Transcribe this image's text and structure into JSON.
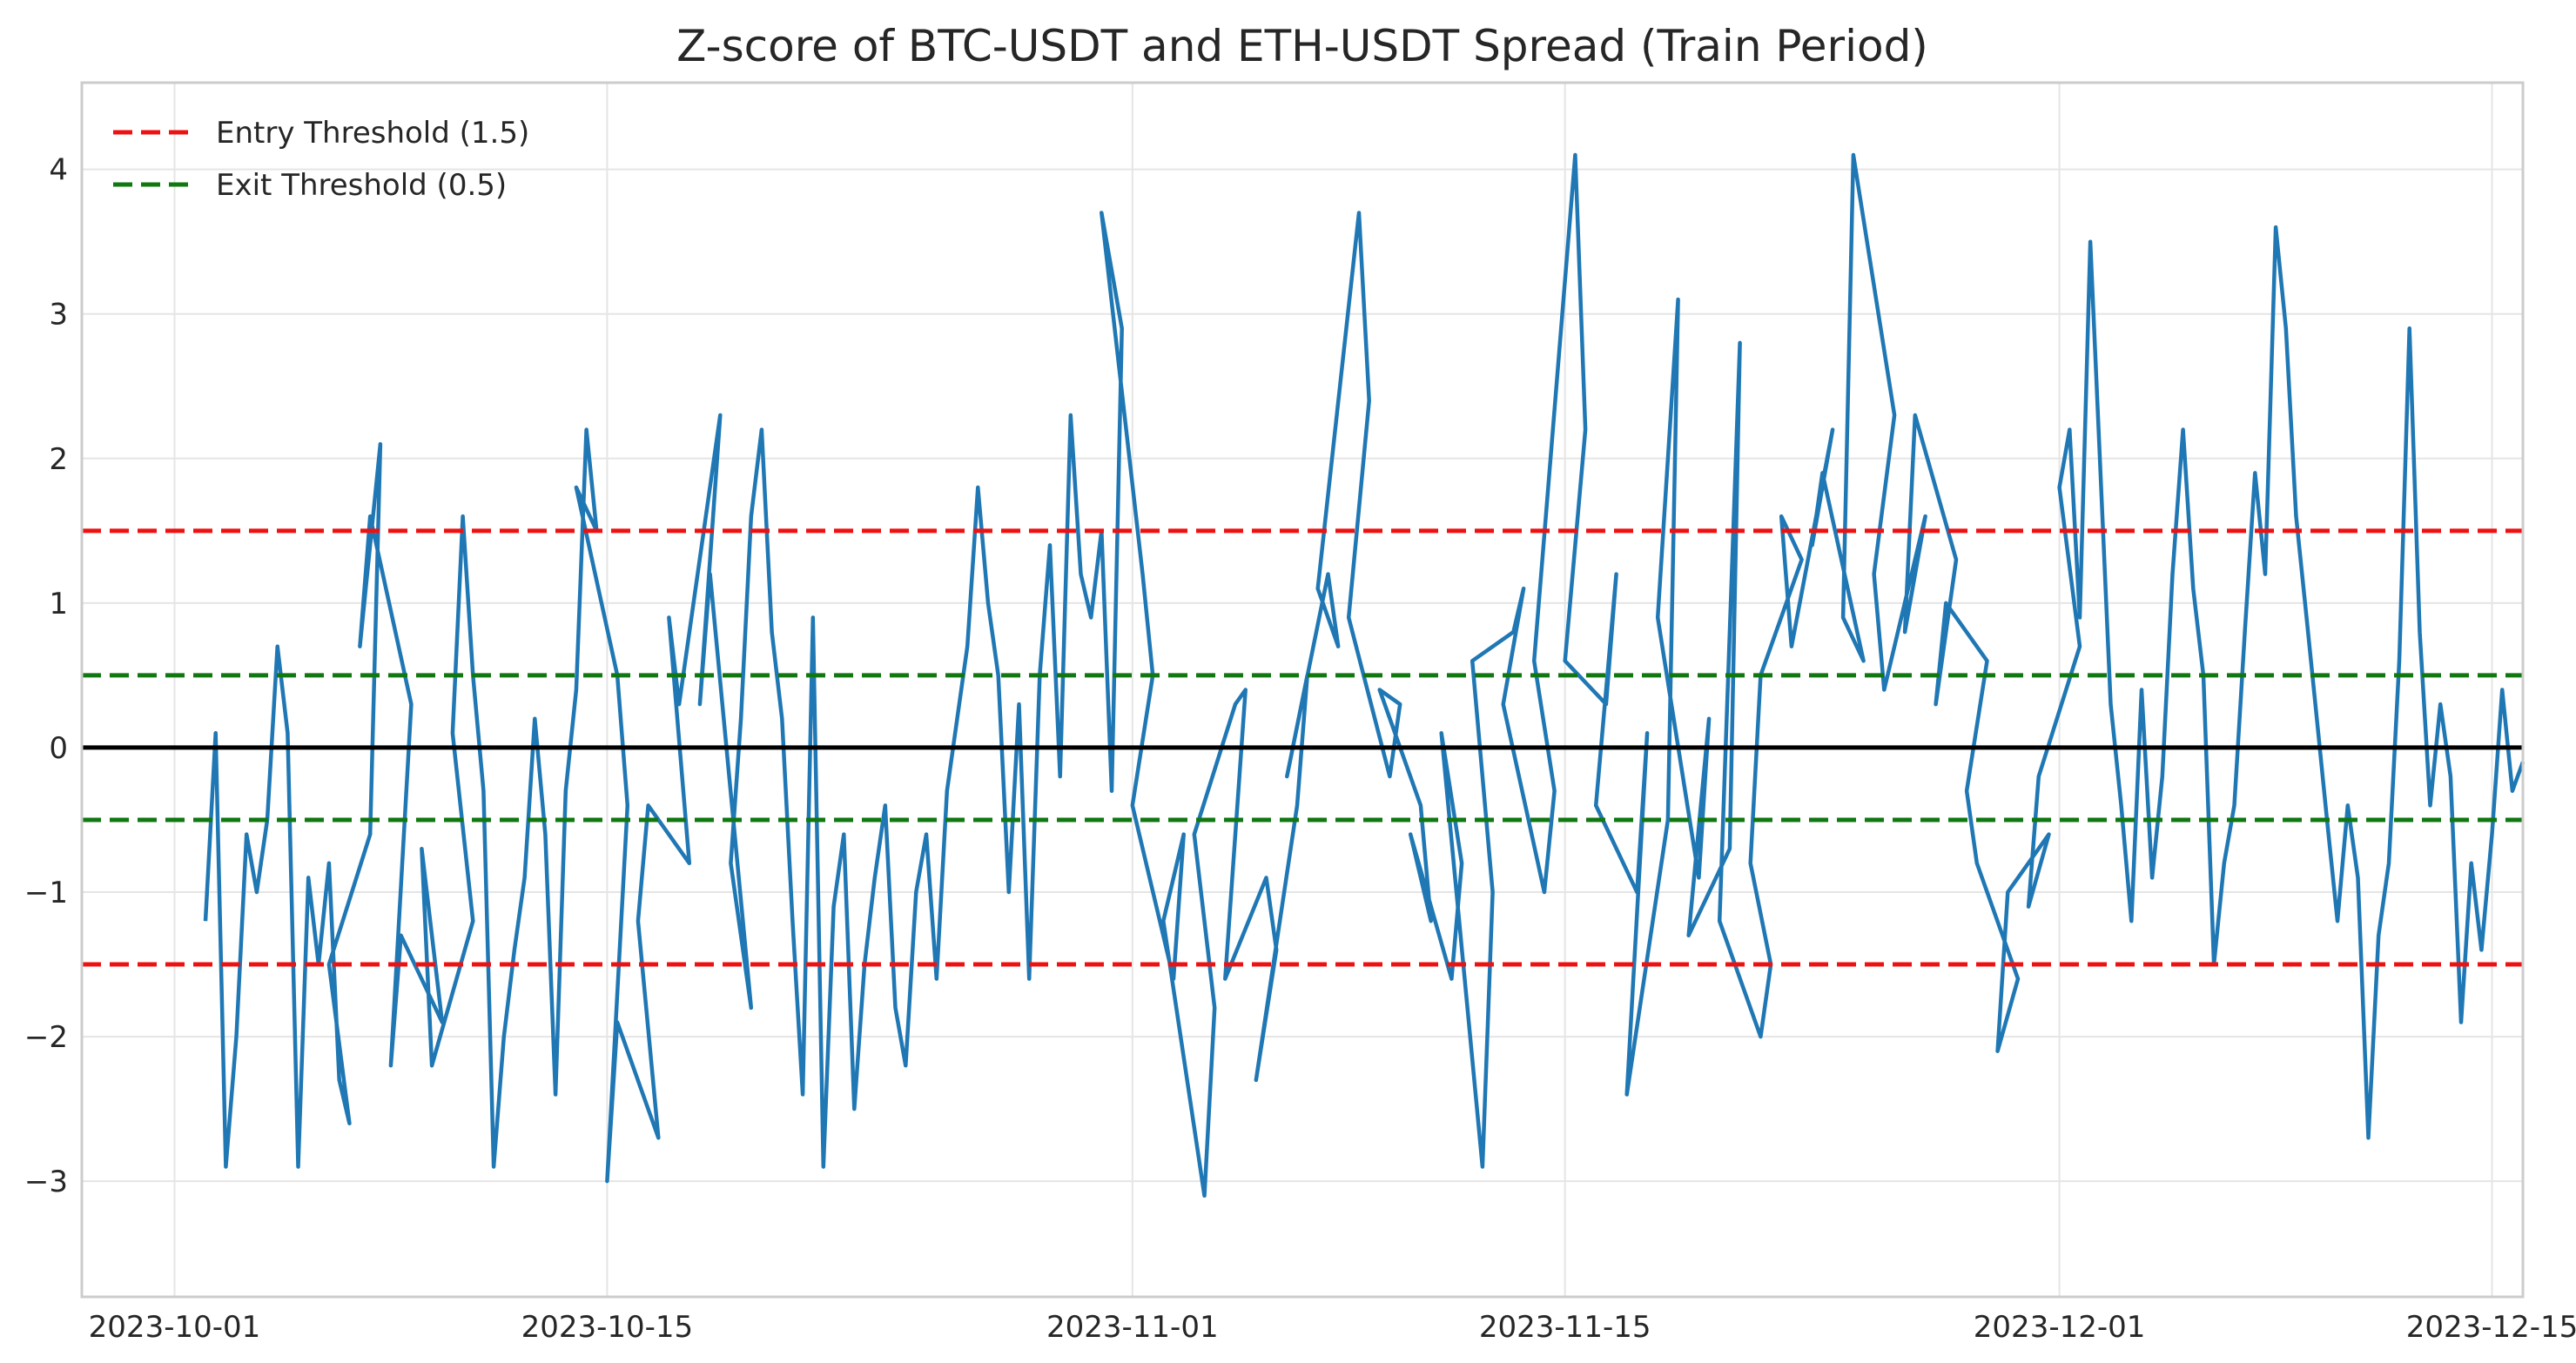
{
  "chart_data": {
    "type": "line",
    "title": "Z-score of BTC-USDT and ETH-USDT Spread (Train Period)",
    "xlabel": "",
    "ylabel": "",
    "x_range": [
      "2023-09-28",
      "2023-12-16"
    ],
    "ylim": [
      -3.8,
      4.6
    ],
    "x_ticks": [
      "2023-10-01",
      "2023-10-15",
      "2023-11-01",
      "2023-11-15",
      "2023-12-01",
      "2023-12-15"
    ],
    "y_ticks": [
      4,
      3,
      2,
      1,
      0,
      -1,
      -2,
      -3
    ],
    "y_tick_labels": [
      "4",
      "3",
      "2",
      "1",
      "0",
      "−1",
      "−2",
      "−3"
    ],
    "grid": true,
    "legend": {
      "position": "top-left",
      "entries": [
        "Entry Threshold (1.5)",
        "Exit Threshold (0.5)"
      ]
    },
    "thresholds": [
      {
        "name": "Entry Threshold (1.5)",
        "values": [
          1.5,
          -1.5
        ],
        "color": "#ee1111",
        "style": "dashed",
        "in_legend": true
      },
      {
        "name": "Exit Threshold (0.5)",
        "values": [
          0.5,
          -0.5
        ],
        "color": "#117711",
        "style": "dashed",
        "in_legend": true
      },
      {
        "name": "",
        "values": [
          0
        ],
        "color": "#000000",
        "style": "solid",
        "in_legend": false
      }
    ],
    "series": [
      {
        "color": "#1f77b4",
        "points": [
          [
            "2023-10-02",
            -1.2
          ],
          [
            "2023-10-02",
            0.1
          ],
          [
            "2023-10-02",
            -2.9
          ],
          [
            "2023-10-03",
            -2.0
          ],
          [
            "2023-10-03",
            -0.6
          ],
          [
            "2023-10-03",
            -1.0
          ],
          [
            "2023-10-04",
            -0.5
          ],
          [
            "2023-10-04",
            0.7
          ],
          [
            "2023-10-04",
            0.1
          ],
          [
            "2023-10-05",
            -2.9
          ],
          [
            "2023-10-05",
            -0.9
          ],
          [
            "2023-10-05",
            -1.5
          ],
          [
            "2023-10-06",
            -0.8
          ],
          [
            "2023-10-06",
            -2.3
          ],
          [
            "2023-10-06",
            -2.6
          ],
          [
            "2023-10-06",
            -1.5
          ],
          [
            "2023-10-07",
            -0.6
          ],
          [
            "2023-10-07",
            2.1
          ],
          [
            "2023-10-07",
            0.7
          ],
          [
            "2023-10-07",
            1.6
          ],
          [
            "2023-10-08",
            0.3
          ],
          [
            "2023-10-08",
            -2.2
          ],
          [
            "2023-10-08",
            -1.3
          ],
          [
            "2023-10-09",
            -1.9
          ],
          [
            "2023-10-09",
            -0.7
          ],
          [
            "2023-10-09",
            -2.2
          ],
          [
            "2023-10-10",
            -1.2
          ],
          [
            "2023-10-10",
            0.1
          ],
          [
            "2023-10-10",
            1.6
          ],
          [
            "2023-10-10",
            0.5
          ],
          [
            "2023-10-11",
            -0.3
          ],
          [
            "2023-10-11",
            -2.9
          ],
          [
            "2023-10-11",
            -2.0
          ],
          [
            "2023-10-12",
            -1.4
          ],
          [
            "2023-10-12",
            -0.9
          ],
          [
            "2023-10-12",
            0.2
          ],
          [
            "2023-10-13",
            -0.6
          ],
          [
            "2023-10-13",
            -2.4
          ],
          [
            "2023-10-13",
            -0.3
          ],
          [
            "2023-10-14",
            0.4
          ],
          [
            "2023-10-14",
            2.2
          ],
          [
            "2023-10-14",
            1.5
          ],
          [
            "2023-10-14",
            1.8
          ],
          [
            "2023-10-15",
            0.5
          ],
          [
            "2023-10-15",
            -0.4
          ],
          [
            "2023-10-15",
            -3.0
          ],
          [
            "2023-10-15",
            -1.9
          ],
          [
            "2023-10-16",
            -2.7
          ],
          [
            "2023-10-16",
            -1.2
          ],
          [
            "2023-10-16",
            -0.4
          ],
          [
            "2023-10-17",
            -0.8
          ],
          [
            "2023-10-17",
            0.9
          ],
          [
            "2023-10-17",
            0.3
          ],
          [
            "2023-10-18",
            2.3
          ],
          [
            "2023-10-18",
            0.3
          ],
          [
            "2023-10-18",
            1.2
          ],
          [
            "2023-10-19",
            -1.8
          ],
          [
            "2023-10-19",
            -0.8
          ],
          [
            "2023-10-19",
            0.2
          ],
          [
            "2023-10-19",
            1.6
          ],
          [
            "2023-10-20",
            2.2
          ],
          [
            "2023-10-20",
            0.8
          ],
          [
            "2023-10-20",
            0.2
          ],
          [
            "2023-10-21",
            -1.2
          ],
          [
            "2023-10-21",
            -2.4
          ],
          [
            "2023-10-21",
            0.9
          ],
          [
            "2023-10-22",
            -2.9
          ],
          [
            "2023-10-22",
            -1.1
          ],
          [
            "2023-10-22",
            -0.6
          ],
          [
            "2023-10-23",
            -2.5
          ],
          [
            "2023-10-23",
            -1.5
          ],
          [
            "2023-10-23",
            -0.9
          ],
          [
            "2023-10-24",
            -0.4
          ],
          [
            "2023-10-24",
            -1.8
          ],
          [
            "2023-10-24",
            -2.2
          ],
          [
            "2023-10-25",
            -1.0
          ],
          [
            "2023-10-25",
            -0.6
          ],
          [
            "2023-10-25",
            -1.6
          ],
          [
            "2023-10-26",
            -0.3
          ],
          [
            "2023-10-26",
            0.2
          ],
          [
            "2023-10-26",
            0.7
          ],
          [
            "2023-10-27",
            1.8
          ],
          [
            "2023-10-27",
            1.0
          ],
          [
            "2023-10-27",
            0.5
          ],
          [
            "2023-10-28",
            -1.0
          ],
          [
            "2023-10-28",
            0.3
          ],
          [
            "2023-10-28",
            -1.6
          ],
          [
            "2023-10-29",
            0.5
          ],
          [
            "2023-10-29",
            1.4
          ],
          [
            "2023-10-29",
            -0.2
          ],
          [
            "2023-10-30",
            2.3
          ],
          [
            "2023-10-30",
            1.2
          ],
          [
            "2023-10-30",
            0.9
          ],
          [
            "2023-10-31",
            1.5
          ],
          [
            "2023-10-31",
            -0.3
          ],
          [
            "2023-10-31",
            2.9
          ],
          [
            "2023-10-31",
            3.7
          ],
          [
            "2023-11-01",
            1.2
          ],
          [
            "2023-11-01",
            0.5
          ],
          [
            "2023-11-01",
            -0.4
          ],
          [
            "2023-11-02",
            -1.6
          ],
          [
            "2023-11-02",
            -0.6
          ],
          [
            "2023-11-02",
            -1.2
          ],
          [
            "2023-11-03",
            -3.1
          ],
          [
            "2023-11-03",
            -1.8
          ],
          [
            "2023-11-03",
            -0.6
          ],
          [
            "2023-11-04",
            0.3
          ],
          [
            "2023-11-04",
            0.4
          ],
          [
            "2023-11-04",
            -1.6
          ],
          [
            "2023-11-05",
            -0.9
          ],
          [
            "2023-11-05",
            -1.4
          ],
          [
            "2023-11-05",
            -2.3
          ],
          [
            "2023-11-06",
            -0.4
          ],
          [
            "2023-11-06",
            0.5
          ],
          [
            "2023-11-06",
            -0.2
          ],
          [
            "2023-11-07",
            1.2
          ],
          [
            "2023-11-07",
            0.7
          ],
          [
            "2023-11-07",
            1.1
          ],
          [
            "2023-11-08",
            3.7
          ],
          [
            "2023-11-08",
            2.4
          ],
          [
            "2023-11-08",
            0.9
          ],
          [
            "2023-11-09",
            -0.2
          ],
          [
            "2023-11-09",
            0.3
          ],
          [
            "2023-11-09",
            0.4
          ],
          [
            "2023-11-10",
            -0.4
          ],
          [
            "2023-11-10",
            -1.2
          ],
          [
            "2023-11-10",
            -0.6
          ],
          [
            "2023-11-11",
            -1.6
          ],
          [
            "2023-11-11",
            -0.8
          ],
          [
            "2023-11-11",
            0.1
          ],
          [
            "2023-11-12",
            -2.9
          ],
          [
            "2023-11-12",
            -1.0
          ],
          [
            "2023-11-12",
            0.6
          ],
          [
            "2023-11-13",
            0.8
          ],
          [
            "2023-11-13",
            1.1
          ],
          [
            "2023-11-13",
            0.3
          ],
          [
            "2023-11-14",
            -1.0
          ],
          [
            "2023-11-14",
            -0.3
          ],
          [
            "2023-11-14",
            0.6
          ],
          [
            "2023-11-15",
            4.1
          ],
          [
            "2023-11-15",
            2.2
          ],
          [
            "2023-11-15",
            0.6
          ],
          [
            "2023-11-16",
            0.3
          ],
          [
            "2023-11-16",
            1.2
          ],
          [
            "2023-11-16",
            -0.4
          ],
          [
            "2023-11-17",
            -1.0
          ],
          [
            "2023-11-17",
            0.1
          ],
          [
            "2023-11-17",
            -2.4
          ],
          [
            "2023-11-18",
            -0.5
          ],
          [
            "2023-11-18",
            3.1
          ],
          [
            "2023-11-18",
            0.9
          ],
          [
            "2023-11-19",
            -0.9
          ],
          [
            "2023-11-19",
            0.2
          ],
          [
            "2023-11-19",
            -1.3
          ],
          [
            "2023-11-20",
            -0.7
          ],
          [
            "2023-11-20",
            2.8
          ],
          [
            "2023-11-20",
            -1.2
          ],
          [
            "2023-11-21",
            -2.0
          ],
          [
            "2023-11-21",
            -1.5
          ],
          [
            "2023-11-21",
            -0.8
          ],
          [
            "2023-11-21",
            0.5
          ],
          [
            "2023-11-22",
            1.3
          ],
          [
            "2023-11-22",
            1.6
          ],
          [
            "2023-11-22",
            0.7
          ],
          [
            "2023-11-23",
            2.2
          ],
          [
            "2023-11-23",
            1.4
          ],
          [
            "2023-11-23",
            1.9
          ],
          [
            "2023-11-24",
            0.6
          ],
          [
            "2023-11-24",
            0.9
          ],
          [
            "2023-11-24",
            4.1
          ],
          [
            "2023-11-25",
            2.3
          ],
          [
            "2023-11-25",
            1.2
          ],
          [
            "2023-11-25",
            0.4
          ],
          [
            "2023-11-26",
            1.6
          ],
          [
            "2023-11-26",
            0.8
          ],
          [
            "2023-11-26",
            2.3
          ],
          [
            "2023-11-27",
            1.3
          ],
          [
            "2023-11-27",
            0.3
          ],
          [
            "2023-11-27",
            1.0
          ],
          [
            "2023-11-28",
            0.6
          ],
          [
            "2023-11-28",
            -0.3
          ],
          [
            "2023-11-28",
            -0.8
          ],
          [
            "2023-11-29",
            -1.6
          ],
          [
            "2023-11-29",
            -2.1
          ],
          [
            "2023-11-29",
            -1.0
          ],
          [
            "2023-11-30",
            -0.6
          ],
          [
            "2023-11-30",
            -1.1
          ],
          [
            "2023-11-30",
            -0.2
          ],
          [
            "2023-12-01",
            0.7
          ],
          [
            "2023-12-01",
            1.8
          ],
          [
            "2023-12-01",
            2.2
          ],
          [
            "2023-12-01",
            0.9
          ],
          [
            "2023-12-02",
            3.5
          ],
          [
            "2023-12-02",
            1.9
          ],
          [
            "2023-12-02",
            0.3
          ],
          [
            "2023-12-03",
            -0.4
          ],
          [
            "2023-12-03",
            -1.2
          ],
          [
            "2023-12-03",
            0.4
          ],
          [
            "2023-12-04",
            -0.9
          ],
          [
            "2023-12-04",
            -0.2
          ],
          [
            "2023-12-04",
            1.2
          ],
          [
            "2023-12-05",
            2.2
          ],
          [
            "2023-12-05",
            1.1
          ],
          [
            "2023-12-05",
            0.5
          ],
          [
            "2023-12-06",
            -1.5
          ],
          [
            "2023-12-06",
            -0.8
          ],
          [
            "2023-12-06",
            -0.4
          ],
          [
            "2023-12-07",
            0.8
          ],
          [
            "2023-12-07",
            1.9
          ],
          [
            "2023-12-07",
            1.2
          ],
          [
            "2023-12-08",
            3.6
          ],
          [
            "2023-12-08",
            2.9
          ],
          [
            "2023-12-08",
            1.6
          ],
          [
            "2023-12-09",
            0.9
          ],
          [
            "2023-12-09",
            0.2
          ],
          [
            "2023-12-09",
            -0.5
          ],
          [
            "2023-12-10",
            -1.2
          ],
          [
            "2023-12-10",
            -0.4
          ],
          [
            "2023-12-10",
            -0.9
          ],
          [
            "2023-12-11",
            -2.7
          ],
          [
            "2023-12-11",
            -1.3
          ],
          [
            "2023-12-11",
            -0.8
          ],
          [
            "2023-12-12",
            0.6
          ],
          [
            "2023-12-12",
            2.9
          ],
          [
            "2023-12-12",
            0.8
          ],
          [
            "2023-12-13",
            -0.4
          ],
          [
            "2023-12-13",
            0.3
          ],
          [
            "2023-12-13",
            -0.2
          ],
          [
            "2023-12-14",
            -1.9
          ],
          [
            "2023-12-14",
            -0.8
          ],
          [
            "2023-12-14",
            -1.4
          ],
          [
            "2023-12-15",
            -0.6
          ],
          [
            "2023-12-15",
            0.4
          ],
          [
            "2023-12-15",
            -0.3
          ],
          [
            "2023-12-16",
            -0.1
          ]
        ]
      }
    ]
  }
}
